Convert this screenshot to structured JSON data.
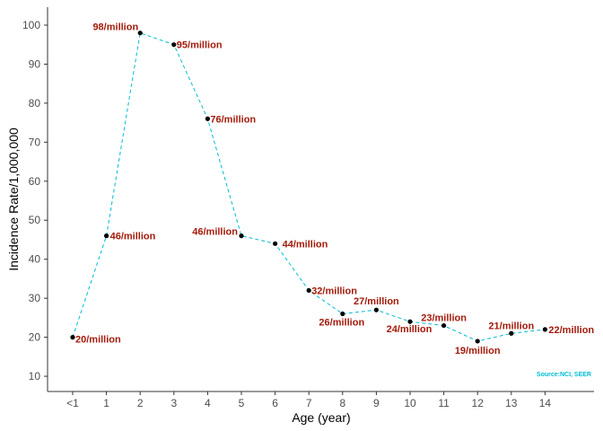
{
  "chart_data": {
    "type": "line",
    "title": "",
    "xlabel": "Age (year)",
    "ylabel": "Incidence Rate/1,000,000",
    "categories": [
      "<1",
      "1",
      "2",
      "3",
      "4",
      "5",
      "6",
      "7",
      "8",
      "9",
      "10",
      "11",
      "12",
      "13",
      "14"
    ],
    "values": [
      20,
      46,
      98,
      95,
      76,
      46,
      44,
      32,
      26,
      27,
      24,
      23,
      19,
      21,
      22
    ],
    "labels": [
      "20/million",
      "46/million",
      "98/million",
      "95/million",
      "76/million",
      "46/million",
      "44/million",
      "32/million",
      "26/million",
      "27/million",
      "24/million",
      "23/million",
      "19/million",
      "21/million",
      "22/million"
    ],
    "yticks": [
      "10",
      "20",
      "30",
      "40",
      "50",
      "60",
      "70",
      "80",
      "90",
      "100"
    ],
    "ylim": [
      6.1,
      104.6
    ],
    "grid": false,
    "line_style": "dashed",
    "colors": {
      "line": "#00bcd4",
      "point": "#000000",
      "label": "#a31a0a",
      "source": "#00bcd4"
    },
    "annotation": "Source:NCI, SEER"
  }
}
